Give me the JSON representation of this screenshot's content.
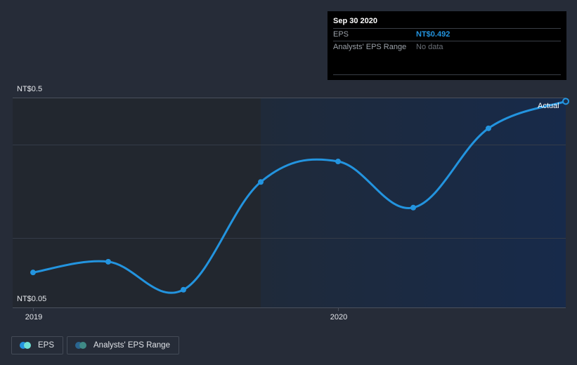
{
  "tooltip": {
    "date": "Sep 30 2020",
    "rows": [
      {
        "label": "EPS",
        "value": "NT$0.492"
      },
      {
        "label": "Analysts' EPS Range",
        "value": "No data"
      }
    ]
  },
  "y_axis": {
    "top_label": "NT$0.5",
    "bottom_label": "NT$0.05"
  },
  "x_axis": {
    "ticks": [
      {
        "label": "2019",
        "x": 47
      },
      {
        "label": "2020",
        "x": 481
      }
    ]
  },
  "actual_label": "Actual",
  "legend": [
    {
      "label": "EPS",
      "colors": [
        "#2394df",
        "#6fe0d4"
      ]
    },
    {
      "label": "Analysts' EPS Range",
      "colors": [
        "#2a6590",
        "#3f8a86"
      ]
    }
  ],
  "colors": {
    "line": "#2394df",
    "background": "#262c38",
    "forecast_region": "#1c2d48"
  },
  "chart_data": {
    "type": "line",
    "title": "",
    "xlabel": "",
    "ylabel": "EPS (NT$)",
    "ylim": [
      0.05,
      0.5
    ],
    "x": [
      "Dec 2018",
      "Mar 2019",
      "Jun 2019",
      "Sep 2019",
      "Dec 2019",
      "Mar 2020",
      "Jun 2020",
      "Sep 2020"
    ],
    "series": [
      {
        "name": "EPS",
        "values": [
          0.125,
          0.148,
          0.088,
          0.319,
          0.363,
          0.264,
          0.434,
          0.492
        ]
      },
      {
        "name": "Analysts' EPS Range",
        "values": []
      }
    ],
    "tick_labels": {
      "x": [
        "2019",
        "2020"
      ],
      "y": [
        "NT$0.05",
        "NT$0.5"
      ]
    },
    "annotations": [
      "Actual"
    ],
    "grid": true,
    "legend_position": "bottom-left"
  }
}
